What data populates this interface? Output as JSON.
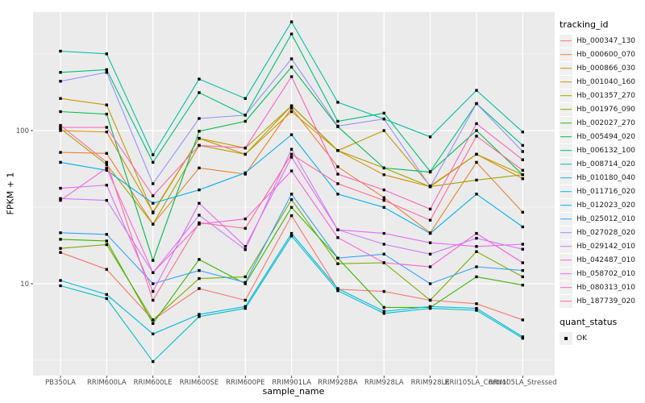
{
  "style": {
    "panel_background": "#EBEBEB",
    "grid_color": "#FFFFFF",
    "tick_label_color": "#4D4D4D",
    "tick_mark_color": "#333333",
    "point_color": "#000000",
    "legend_key_background": "#F0F0F0"
  },
  "axes": {
    "x_title": "sample_name",
    "y_title": "FPKM + 1",
    "y_tick_labels": [
      "10",
      "100"
    ],
    "y_tick_values": [
      10,
      100
    ],
    "y_minor_values": [
      3.1623,
      31.623,
      316.23
    ]
  },
  "legend": {
    "tracking_title": "tracking_id",
    "quant_title": "quant_status",
    "quant_items": [
      {
        "label": "OK"
      }
    ]
  },
  "chart_data": {
    "type": "line",
    "title": "",
    "xlabel": "sample_name",
    "ylabel": "FPKM + 1",
    "y_scale": "log10",
    "ylim": [
      2.5,
      594
    ],
    "grid": true,
    "legend_position": "right",
    "categories": [
      "PB350LA",
      "RRIM600LA",
      "RRIM600LE",
      "RRIM600SE",
      "RRIM600PE",
      "RRIM901LA",
      "RRIM928BA",
      "RRIM928LA",
      "RRIM928LE",
      "RRII105LA_Control",
      "RRII105LA_Stressed"
    ],
    "series": [
      {
        "name": "Hb_000347_130",
        "color": "#F8766D",
        "values": [
          16,
          12.4,
          5.8,
          9.3,
          7.8,
          27.8,
          9.2,
          8.9,
          7.8,
          7.4,
          5.8
        ]
      },
      {
        "name": "Hb_000600_070",
        "color": "#EA8331",
        "values": [
          72,
          71,
          24.5,
          57,
          52,
          140,
          58,
          36.5,
          21.5,
          62,
          29.3
        ]
      },
      {
        "name": "Hb_000866_030",
        "color": "#D89000",
        "values": [
          100,
          98,
          29.4,
          89,
          70,
          133,
          74,
          51.5,
          43,
          70,
          48.5
        ]
      },
      {
        "name": "Hb_001040_160",
        "color": "#C09B00",
        "values": [
          162,
          147,
          29,
          89,
          77,
          145,
          74,
          100,
          43.5,
          70,
          51.5
        ]
      },
      {
        "name": "Hb_001357_270",
        "color": "#A3A500",
        "values": [
          103,
          60,
          24.5,
          80,
          70,
          145,
          74,
          57,
          43,
          47.5,
          51.5
        ]
      },
      {
        "name": "Hb_001976_090",
        "color": "#7CAE00",
        "values": [
          17,
          18,
          5.8,
          10.8,
          11.1,
          35.4,
          13.5,
          13.7,
          7.8,
          16.2,
          11.1
        ]
      },
      {
        "name": "Hb_002027_270",
        "color": "#39B600",
        "values": [
          19.5,
          19,
          5.5,
          14.4,
          10,
          31.5,
          14.7,
          7,
          7,
          11.1,
          9.8
        ]
      },
      {
        "name": "Hb_005494_020",
        "color": "#00BB4E",
        "values": [
          133,
          128,
          14.2,
          99,
          115,
          260,
          106,
          57,
          53.6,
          100,
          51.5
        ]
      },
      {
        "name": "Hb_006132_100",
        "color": "#00BF7D",
        "values": [
          240,
          250,
          62,
          177,
          126,
          427,
          115,
          130,
          54,
          150,
          80
        ]
      },
      {
        "name": "Hb_008714_020",
        "color": "#00C1A3",
        "values": [
          330,
          317,
          69.5,
          217,
          162,
          513,
          153,
          119,
          91,
          183,
          98
        ]
      },
      {
        "name": "Hb_010180_040",
        "color": "#00BFC4",
        "values": [
          9.7,
          8,
          3.1,
          6.1,
          6.9,
          20.5,
          9,
          6.4,
          6.9,
          6.7,
          4.4
        ]
      },
      {
        "name": "Hb_011716_020",
        "color": "#00BAE0",
        "values": [
          10.5,
          8.5,
          4.7,
          6.3,
          7.1,
          21.3,
          9.3,
          6.6,
          7.1,
          6.9,
          4.5
        ]
      },
      {
        "name": "Hb_012023_020",
        "color": "#00B0F6",
        "values": [
          62,
          55,
          33.5,
          41,
          53,
          94,
          38.5,
          31.5,
          21.3,
          38.5,
          23.5
        ]
      },
      {
        "name": "Hb_025012_010",
        "color": "#35A2FF",
        "values": [
          21.5,
          21,
          10,
          12.2,
          10.2,
          38.5,
          14.7,
          15.6,
          10,
          12.9,
          12.2
        ]
      },
      {
        "name": "Hb_027028_020",
        "color": "#9590FF",
        "values": [
          210,
          240,
          45,
          120,
          126,
          294,
          107,
          119,
          43,
          150,
          73
        ]
      },
      {
        "name": "Hb_029142_010",
        "color": "#C77CFF",
        "values": [
          36,
          35,
          11.8,
          28,
          16.7,
          75.5,
          22.5,
          18.1,
          15.6,
          19.8,
          16.8
        ]
      },
      {
        "name": "Hb_042487_010",
        "color": "#E76BF3",
        "values": [
          42,
          44,
          8.9,
          33.5,
          17.5,
          67,
          22.5,
          21.3,
          18.5,
          17.5,
          18.1
        ]
      },
      {
        "name": "Hb_058702_010",
        "color": "#FA62DB",
        "values": [
          35,
          57,
          11.8,
          24.5,
          26.5,
          54.5,
          20,
          13.7,
          12.9,
          21.3,
          13.7
        ]
      },
      {
        "name": "Hb_080313_010",
        "color": "#FF62BC",
        "values": [
          105,
          105,
          37.5,
          80,
          77,
          225,
          52,
          41,
          30.7,
          111,
          64.5
        ]
      },
      {
        "name": "Hb_187739_020",
        "color": "#FF6A98",
        "values": [
          108,
          62,
          7.8,
          25,
          23,
          70,
          45,
          35,
          26,
          92,
          55
        ]
      }
    ]
  }
}
